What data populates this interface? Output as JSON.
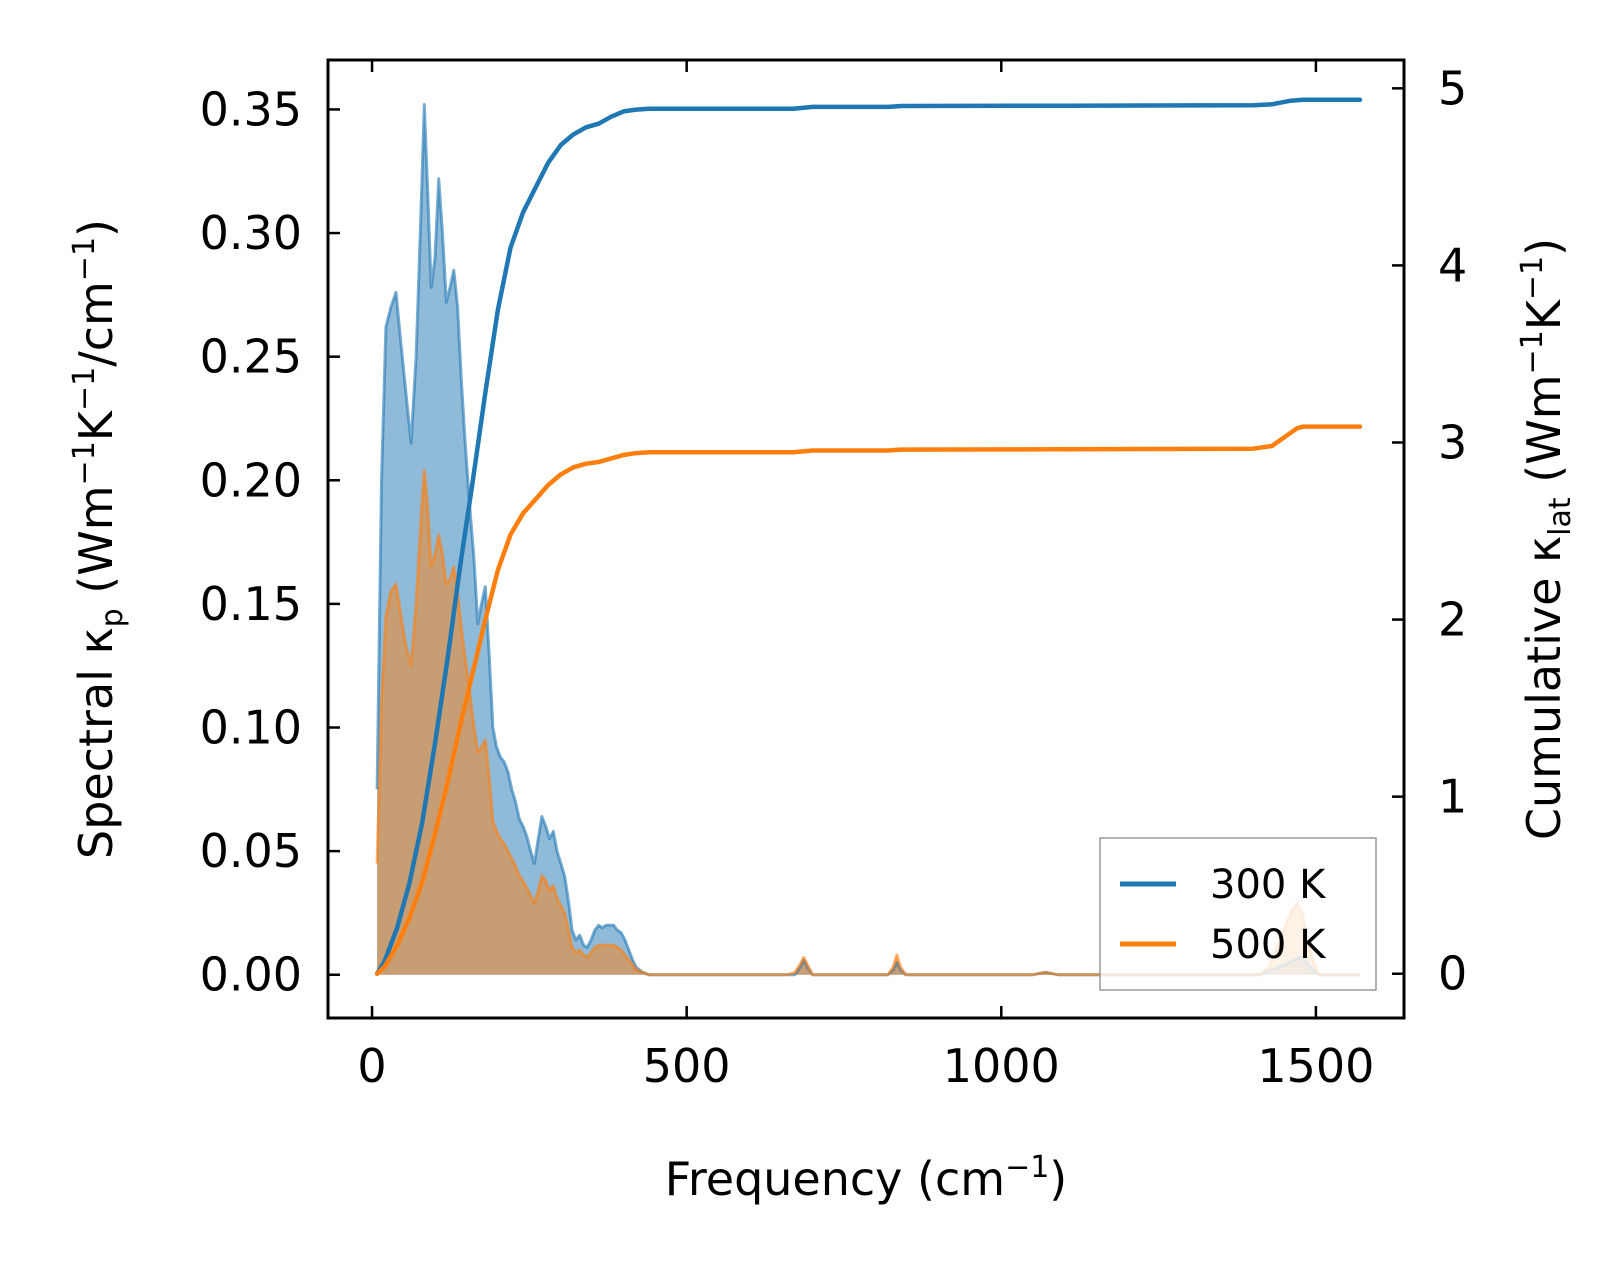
{
  "chart_data": {
    "type": "line",
    "xlabel": "Frequency (cm",
    "xlabel_sup": "−1",
    "xlabel_end": ")",
    "ylabel_left": {
      "pre": "Spectral κ",
      "sub": "p",
      "mid1": " (Wm",
      "sup1": "−1",
      "mid2": "K",
      "sup2": "−1",
      "mid3": "/cm",
      "sup3": "−1",
      "post": ")"
    },
    "ylabel_right": {
      "pre": "Cumulative κ",
      "sub": "lat",
      "mid1": " (Wm",
      "sup1": "−1",
      "mid2": "K",
      "sup2": "−1",
      "post": ")"
    },
    "xlim": [
      -70,
      1640
    ],
    "ylim_left": [
      -0.0175,
      0.37
    ],
    "ylim_right": [
      -0.25,
      5.16
    ],
    "xticks": [
      {
        "value": 0,
        "label": "0"
      },
      {
        "value": 500,
        "label": "500"
      },
      {
        "value": 1000,
        "label": "1000"
      },
      {
        "value": 1500,
        "label": "1500"
      }
    ],
    "yticks_left": [
      {
        "value": 0.0,
        "label": "0.00"
      },
      {
        "value": 0.05,
        "label": "0.05"
      },
      {
        "value": 0.1,
        "label": "0.10"
      },
      {
        "value": 0.15,
        "label": "0.15"
      },
      {
        "value": 0.2,
        "label": "0.20"
      },
      {
        "value": 0.25,
        "label": "0.25"
      },
      {
        "value": 0.3,
        "label": "0.30"
      },
      {
        "value": 0.35,
        "label": "0.35"
      }
    ],
    "yticks_right": [
      {
        "value": 0,
        "label": "0"
      },
      {
        "value": 1,
        "label": "1"
      },
      {
        "value": 2,
        "label": "2"
      },
      {
        "value": 3,
        "label": "3"
      },
      {
        "value": 4,
        "label": "4"
      },
      {
        "value": 5,
        "label": "5"
      }
    ],
    "legend_position": "lower-right",
    "series": [
      {
        "name": "300 K",
        "color": "#1f77b4",
        "spectral": [
          [
            8,
            0.075
          ],
          [
            15,
            0.2
          ],
          [
            22,
            0.262
          ],
          [
            30,
            0.27
          ],
          [
            38,
            0.276
          ],
          [
            46,
            0.255
          ],
          [
            54,
            0.235
          ],
          [
            62,
            0.215
          ],
          [
            70,
            0.25
          ],
          [
            78,
            0.31
          ],
          [
            83,
            0.352
          ],
          [
            88,
            0.32
          ],
          [
            94,
            0.278
          ],
          [
            100,
            0.29
          ],
          [
            106,
            0.322
          ],
          [
            112,
            0.3
          ],
          [
            118,
            0.272
          ],
          [
            124,
            0.278
          ],
          [
            130,
            0.285
          ],
          [
            136,
            0.27
          ],
          [
            142,
            0.24
          ],
          [
            148,
            0.215
          ],
          [
            155,
            0.19
          ],
          [
            162,
            0.168
          ],
          [
            168,
            0.142
          ],
          [
            174,
            0.15
          ],
          [
            180,
            0.157
          ],
          [
            186,
            0.13
          ],
          [
            192,
            0.1
          ],
          [
            198,
            0.092
          ],
          [
            204,
            0.088
          ],
          [
            210,
            0.086
          ],
          [
            216,
            0.082
          ],
          [
            222,
            0.075
          ],
          [
            228,
            0.07
          ],
          [
            234,
            0.063
          ],
          [
            240,
            0.06
          ],
          [
            246,
            0.056
          ],
          [
            252,
            0.05
          ],
          [
            258,
            0.045
          ],
          [
            264,
            0.055
          ],
          [
            270,
            0.064
          ],
          [
            276,
            0.06
          ],
          [
            282,
            0.055
          ],
          [
            288,
            0.058
          ],
          [
            294,
            0.05
          ],
          [
            300,
            0.045
          ],
          [
            306,
            0.04
          ],
          [
            312,
            0.03
          ],
          [
            318,
            0.018
          ],
          [
            324,
            0.014
          ],
          [
            330,
            0.016
          ],
          [
            336,
            0.012
          ],
          [
            342,
            0.011
          ],
          [
            348,
            0.014
          ],
          [
            354,
            0.018
          ],
          [
            360,
            0.02
          ],
          [
            366,
            0.019
          ],
          [
            372,
            0.02
          ],
          [
            378,
            0.02
          ],
          [
            384,
            0.02
          ],
          [
            390,
            0.018
          ],
          [
            396,
            0.017
          ],
          [
            402,
            0.014
          ],
          [
            408,
            0.01
          ],
          [
            414,
            0.006
          ],
          [
            420,
            0.003
          ],
          [
            430,
            0.001
          ],
          [
            440,
            0.0
          ],
          [
            660,
            0.0
          ],
          [
            672,
            0.0
          ],
          [
            680,
            0.003
          ],
          [
            686,
            0.006
          ],
          [
            692,
            0.003
          ],
          [
            700,
            0.0
          ],
          [
            820,
            0.0
          ],
          [
            828,
            0.002
          ],
          [
            834,
            0.005
          ],
          [
            840,
            0.002
          ],
          [
            848,
            0.0
          ],
          [
            1050,
            0.0
          ],
          [
            1070,
            0.001
          ],
          [
            1090,
            0.0
          ],
          [
            1410,
            0.0
          ],
          [
            1430,
            0.002
          ],
          [
            1450,
            0.004
          ],
          [
            1465,
            0.006
          ],
          [
            1475,
            0.007
          ],
          [
            1485,
            0.005
          ],
          [
            1495,
            0.002
          ],
          [
            1505,
            0.0
          ],
          [
            1570,
            0.0
          ]
        ],
        "cumulative": [
          [
            8,
            0.0
          ],
          [
            20,
            0.07
          ],
          [
            40,
            0.26
          ],
          [
            60,
            0.52
          ],
          [
            80,
            0.86
          ],
          [
            100,
            1.3
          ],
          [
            120,
            1.78
          ],
          [
            140,
            2.3
          ],
          [
            160,
            2.78
          ],
          [
            180,
            3.28
          ],
          [
            200,
            3.75
          ],
          [
            220,
            4.1
          ],
          [
            240,
            4.3
          ],
          [
            260,
            4.44
          ],
          [
            280,
            4.58
          ],
          [
            300,
            4.68
          ],
          [
            320,
            4.74
          ],
          [
            340,
            4.78
          ],
          [
            360,
            4.8
          ],
          [
            380,
            4.84
          ],
          [
            400,
            4.87
          ],
          [
            420,
            4.88
          ],
          [
            440,
            4.885
          ],
          [
            670,
            4.885
          ],
          [
            700,
            4.895
          ],
          [
            820,
            4.895
          ],
          [
            840,
            4.9
          ],
          [
            1100,
            4.902
          ],
          [
            1400,
            4.905
          ],
          [
            1430,
            4.91
          ],
          [
            1460,
            4.93
          ],
          [
            1480,
            4.935
          ],
          [
            1570,
            4.935
          ]
        ]
      },
      {
        "name": "500 K",
        "color": "#ff7f0e",
        "spectral": [
          [
            8,
            0.045
          ],
          [
            15,
            0.11
          ],
          [
            22,
            0.145
          ],
          [
            30,
            0.155
          ],
          [
            38,
            0.158
          ],
          [
            46,
            0.145
          ],
          [
            54,
            0.133
          ],
          [
            62,
            0.125
          ],
          [
            70,
            0.15
          ],
          [
            78,
            0.185
          ],
          [
            83,
            0.204
          ],
          [
            88,
            0.19
          ],
          [
            94,
            0.165
          ],
          [
            100,
            0.17
          ],
          [
            106,
            0.178
          ],
          [
            112,
            0.17
          ],
          [
            118,
            0.158
          ],
          [
            124,
            0.16
          ],
          [
            130,
            0.165
          ],
          [
            136,
            0.155
          ],
          [
            142,
            0.14
          ],
          [
            148,
            0.128
          ],
          [
            155,
            0.115
          ],
          [
            162,
            0.1
          ],
          [
            168,
            0.09
          ],
          [
            174,
            0.092
          ],
          [
            180,
            0.095
          ],
          [
            186,
            0.08
          ],
          [
            192,
            0.062
          ],
          [
            198,
            0.058
          ],
          [
            204,
            0.055
          ],
          [
            210,
            0.053
          ],
          [
            216,
            0.05
          ],
          [
            222,
            0.047
          ],
          [
            228,
            0.044
          ],
          [
            234,
            0.04
          ],
          [
            240,
            0.038
          ],
          [
            246,
            0.035
          ],
          [
            252,
            0.032
          ],
          [
            258,
            0.029
          ],
          [
            264,
            0.034
          ],
          [
            270,
            0.04
          ],
          [
            276,
            0.038
          ],
          [
            282,
            0.034
          ],
          [
            288,
            0.036
          ],
          [
            294,
            0.031
          ],
          [
            300,
            0.028
          ],
          [
            306,
            0.025
          ],
          [
            312,
            0.018
          ],
          [
            318,
            0.011
          ],
          [
            324,
            0.009
          ],
          [
            330,
            0.01
          ],
          [
            336,
            0.008
          ],
          [
            342,
            0.007
          ],
          [
            348,
            0.009
          ],
          [
            354,
            0.011
          ],
          [
            360,
            0.012
          ],
          [
            366,
            0.012
          ],
          [
            372,
            0.012
          ],
          [
            378,
            0.012
          ],
          [
            384,
            0.012
          ],
          [
            390,
            0.011
          ],
          [
            396,
            0.01
          ],
          [
            402,
            0.008
          ],
          [
            408,
            0.006
          ],
          [
            414,
            0.004
          ],
          [
            420,
            0.002
          ],
          [
            430,
            0.001
          ],
          [
            440,
            0.0
          ],
          [
            660,
            0.0
          ],
          [
            672,
            0.001
          ],
          [
            680,
            0.004
          ],
          [
            686,
            0.007
          ],
          [
            692,
            0.004
          ],
          [
            700,
            0.0
          ],
          [
            820,
            0.0
          ],
          [
            828,
            0.003
          ],
          [
            834,
            0.008
          ],
          [
            840,
            0.003
          ],
          [
            848,
            0.0
          ],
          [
            1050,
            0.0
          ],
          [
            1070,
            0.001
          ],
          [
            1090,
            0.0
          ],
          [
            1410,
            0.0
          ],
          [
            1425,
            0.003
          ],
          [
            1440,
            0.012
          ],
          [
            1452,
            0.02
          ],
          [
            1462,
            0.026
          ],
          [
            1470,
            0.029
          ],
          [
            1478,
            0.025
          ],
          [
            1486,
            0.015
          ],
          [
            1495,
            0.006
          ],
          [
            1505,
            0.0
          ],
          [
            1570,
            0.0
          ]
        ],
        "cumulative": [
          [
            8,
            0.0
          ],
          [
            20,
            0.04
          ],
          [
            40,
            0.16
          ],
          [
            60,
            0.32
          ],
          [
            80,
            0.52
          ],
          [
            100,
            0.79
          ],
          [
            120,
            1.08
          ],
          [
            140,
            1.4
          ],
          [
            160,
            1.7
          ],
          [
            180,
            2.0
          ],
          [
            200,
            2.28
          ],
          [
            220,
            2.48
          ],
          [
            240,
            2.6
          ],
          [
            260,
            2.68
          ],
          [
            280,
            2.76
          ],
          [
            300,
            2.82
          ],
          [
            320,
            2.86
          ],
          [
            340,
            2.88
          ],
          [
            360,
            2.89
          ],
          [
            380,
            2.91
          ],
          [
            400,
            2.93
          ],
          [
            420,
            2.94
          ],
          [
            440,
            2.945
          ],
          [
            670,
            2.945
          ],
          [
            700,
            2.955
          ],
          [
            820,
            2.955
          ],
          [
            840,
            2.96
          ],
          [
            1100,
            2.962
          ],
          [
            1400,
            2.965
          ],
          [
            1430,
            2.98
          ],
          [
            1450,
            3.03
          ],
          [
            1470,
            3.08
          ],
          [
            1480,
            3.09
          ],
          [
            1570,
            3.09
          ]
        ]
      }
    ]
  }
}
